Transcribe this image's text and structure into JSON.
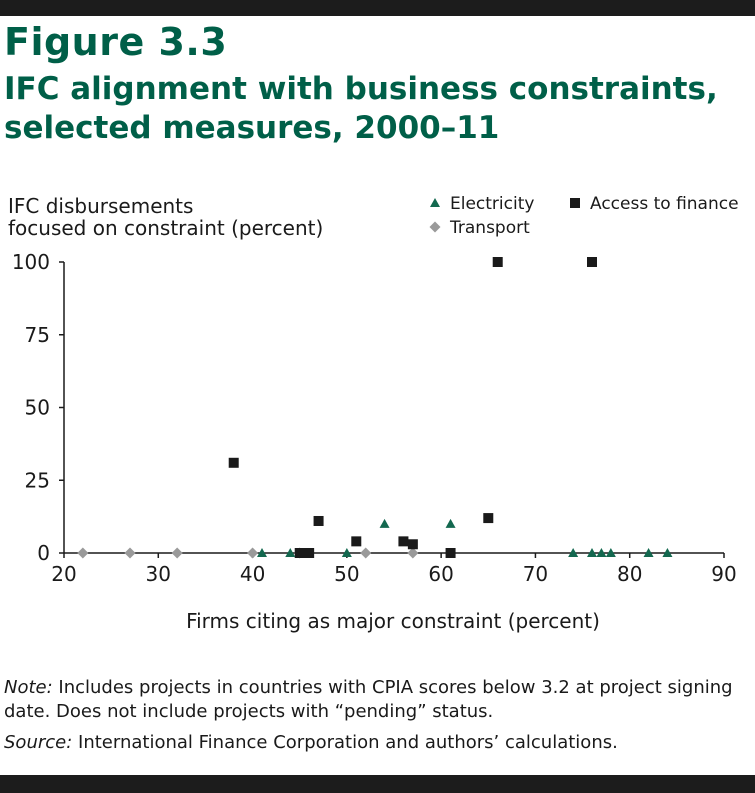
{
  "figure": {
    "label": "Figure 3.3",
    "title_line1": "IFC alignment with business constraints,",
    "title_line2": "selected measures, 2000–11"
  },
  "notes": {
    "note_prefix": "Note:",
    "note_text": " Includes projects in countries with CPIA scores below 3.2 at project signing date. Does not include projects with “pending” status.",
    "source_prefix": "Source:",
    "source_text": " International Finance Corporation and authors’ calculations."
  },
  "colors": {
    "electricity": "#13684f",
    "access_to_finance": "#1a1a1a",
    "transport": "#9a9a9a",
    "title": "#005f48"
  },
  "chart_data": {
    "type": "scatter",
    "ylabel_line1": "IFC disbursements",
    "ylabel_line2": "focused on constraint (percent)",
    "xlabel": "Firms citing as major constraint (percent)",
    "xlim": [
      20,
      90
    ],
    "ylim": [
      0,
      100
    ],
    "xticks": [
      20,
      30,
      40,
      50,
      60,
      70,
      80,
      90
    ],
    "yticks": [
      0,
      25,
      50,
      75,
      100
    ],
    "grid": false,
    "legend_position": "top-right",
    "series": [
      {
        "name": "Electricity",
        "marker": "triangle",
        "points": [
          [
            41,
            0
          ],
          [
            44,
            0
          ],
          [
            50,
            0
          ],
          [
            54,
            10
          ],
          [
            61,
            10
          ],
          [
            74,
            0
          ],
          [
            76,
            0
          ],
          [
            77,
            0
          ],
          [
            78,
            0
          ],
          [
            82,
            0
          ],
          [
            84,
            0
          ]
        ]
      },
      {
        "name": "Access to finance",
        "marker": "square",
        "points": [
          [
            38,
            31
          ],
          [
            45,
            0
          ],
          [
            46,
            0
          ],
          [
            47,
            11
          ],
          [
            51,
            4
          ],
          [
            56,
            4
          ],
          [
            57,
            3
          ],
          [
            61,
            0
          ],
          [
            65,
            12
          ],
          [
            66,
            100
          ],
          [
            76,
            100
          ]
        ]
      },
      {
        "name": "Transport",
        "marker": "diamond",
        "points": [
          [
            22,
            0
          ],
          [
            27,
            0
          ],
          [
            32,
            0
          ],
          [
            40,
            0
          ],
          [
            45,
            0
          ],
          [
            52,
            0
          ],
          [
            57,
            0
          ]
        ]
      }
    ]
  }
}
